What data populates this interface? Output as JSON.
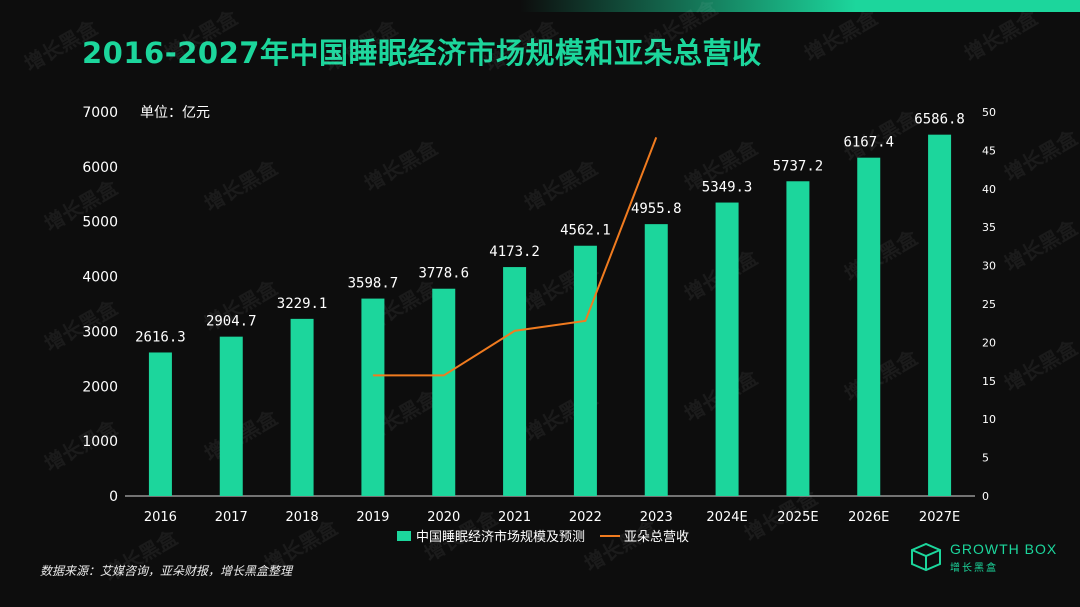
{
  "title": "2016-2027年中国睡眠经济市场规模和亚朵总营收",
  "unit_label": "单位：亿元",
  "source": "数据来源：艾媒咨询，亚朵财报，增长黑盒整理",
  "logo": {
    "en": "GROWTH BOX",
    "cn": "增长黑盒"
  },
  "watermark": "增长黑盒",
  "colors": {
    "bar": "#1cd69c",
    "line": "#f07b1f",
    "title": "#1cd69c"
  },
  "chart_data": {
    "type": "bar",
    "categories": [
      "2016",
      "2017",
      "2018",
      "2019",
      "2020",
      "2021",
      "2022",
      "2023",
      "2024E",
      "2025E",
      "2026E",
      "2027E"
    ],
    "series": [
      {
        "name": "中国睡眠经济市场规模及预测",
        "type": "bar",
        "axis": "left",
        "values": [
          2616.3,
          2904.7,
          3229.1,
          3598.7,
          3778.6,
          4173.2,
          4562.1,
          4955.8,
          5349.3,
          5737.2,
          6167.4,
          6586.8
        ],
        "labels": [
          "2616.3",
          "2904.7",
          "3229.1",
          "3598.7",
          "3778.6",
          "4173.2",
          "4562.1",
          "4955.8",
          "5349.3",
          "5737.2",
          "6167.4",
          "6586.8"
        ]
      },
      {
        "name": "亚朵总营收",
        "type": "line",
        "axis": "right",
        "values": [
          null,
          null,
          null,
          15.7,
          15.7,
          21.5,
          22.8,
          46.7,
          null,
          null,
          null,
          null
        ]
      }
    ],
    "y_left": {
      "range": [
        0,
        7000
      ],
      "ticks": [
        "0",
        "1000",
        "2000",
        "3000",
        "4000",
        "5000",
        "6000",
        "7000"
      ]
    },
    "y_right": {
      "range": [
        0,
        50
      ],
      "ticks": [
        "0",
        "5",
        "10",
        "15",
        "20",
        "25",
        "30",
        "35",
        "40",
        "45",
        "50"
      ]
    },
    "legend_position": "bottom"
  }
}
